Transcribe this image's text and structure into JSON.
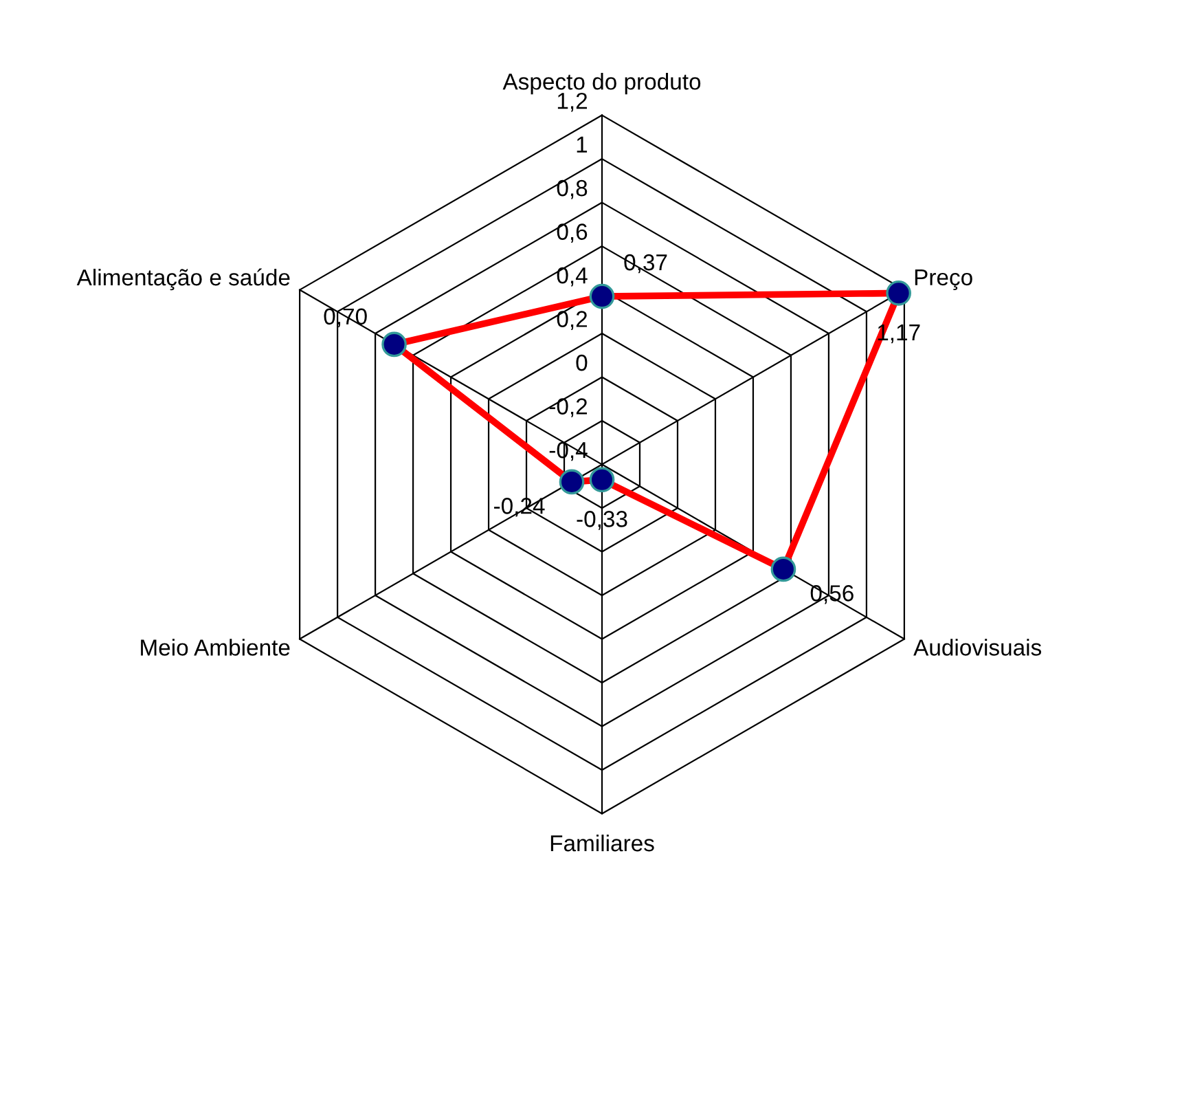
{
  "chart_data": {
    "type": "radar",
    "categories": [
      "Aspecto do produto",
      "Preço",
      "Audiovisuais",
      "Familiares",
      "Meio Ambiente",
      "Alimentação e saúde"
    ],
    "series": [
      {
        "color": "#ff0000",
        "values": [
          0.37,
          1.17,
          0.56,
          -0.33,
          -0.24,
          0.7
        ],
        "value_labels": [
          "0,37",
          "1,17",
          "0,56",
          "-0,33",
          "-0,24",
          "0,70"
        ]
      }
    ],
    "ylim": [
      -0.4,
      1.2
    ],
    "yticks": [
      {
        "value": -0.4,
        "label": "-0,4"
      },
      {
        "value": -0.2,
        "label": "-0,2"
      },
      {
        "value": 0,
        "label": "0"
      },
      {
        "value": 0.2,
        "label": "0,2"
      },
      {
        "value": 0.4,
        "label": "0,4"
      },
      {
        "value": 0.6,
        "label": "0,6"
      },
      {
        "value": 0.8,
        "label": "0,8"
      },
      {
        "value": 1,
        "label": "1"
      },
      {
        "value": 1.2,
        "label": "1,2"
      }
    ],
    "grid": true,
    "marker": "circle",
    "line_style": "solid"
  }
}
